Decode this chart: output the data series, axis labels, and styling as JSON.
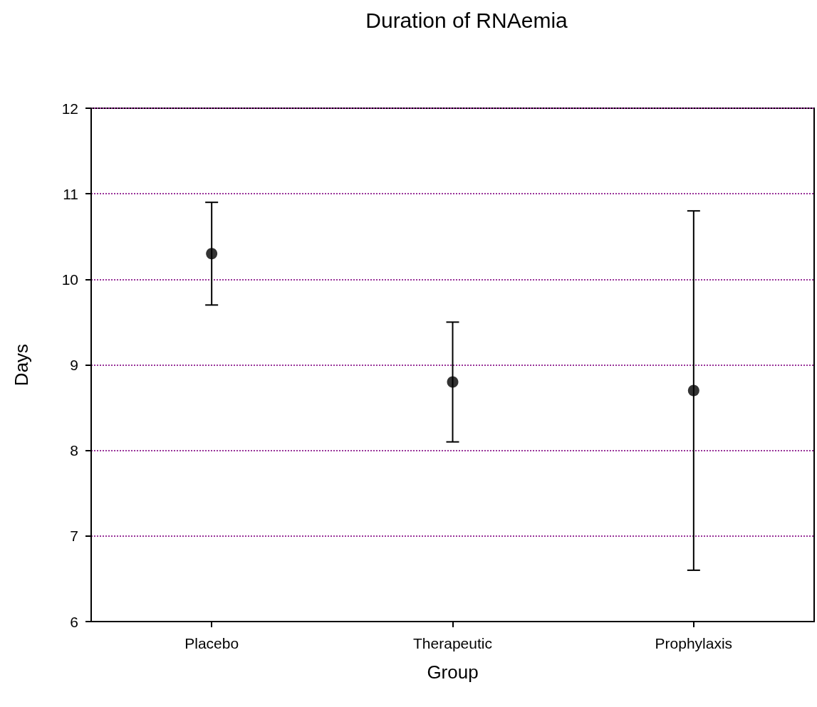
{
  "chart_data": {
    "type": "scatter",
    "title": "Duration of RNAemia",
    "xlabel": "Group",
    "ylabel": "Days",
    "categories": [
      "Placebo",
      "Therapeutic",
      "Prophylaxis"
    ],
    "series": [
      {
        "color": "#000000",
        "values": [
          10.3,
          8.8,
          8.7
        ],
        "errors": [
          0.6,
          0.7,
          2.1
        ]
      }
    ],
    "ylim": [
      6,
      12
    ],
    "yticks": [
      6,
      7,
      8,
      9,
      10,
      11,
      12
    ],
    "grid": "y",
    "marker": "circle"
  }
}
